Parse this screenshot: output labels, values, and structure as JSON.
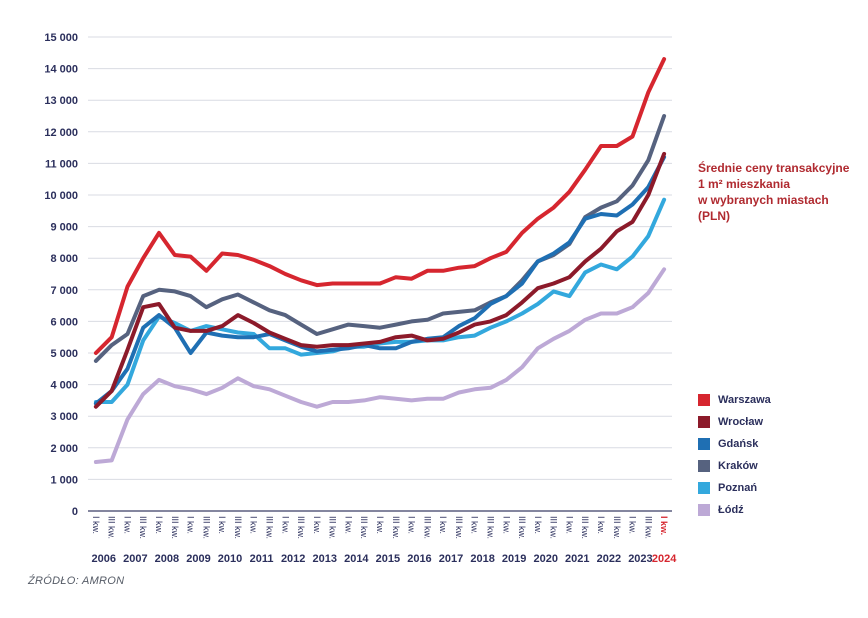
{
  "chart_data": {
    "type": "line",
    "title_lines": [
      "Średnie ceny transakcyjne",
      "1 m² mieszkania",
      "w wybranych miastach",
      "(PLN)"
    ],
    "source": "ŹRÓDŁO: AMRON",
    "y_ticks": [
      "0",
      "1 000",
      "2 000",
      "3 000",
      "4 000",
      "5 000",
      "6 000",
      "7 000",
      "8 000",
      "9 000",
      "10 000",
      "11 000",
      "12 000",
      "13 000",
      "14 000",
      "15 000"
    ],
    "ylim": [
      0,
      15000
    ],
    "grid": true,
    "legend_position": "right",
    "quarter_labels": [
      "I kw.",
      "III kw."
    ],
    "last_quarter_label": "I kw.",
    "years": [
      "2006",
      "2007",
      "2008",
      "2009",
      "2010",
      "2011",
      "2012",
      "2013",
      "2014",
      "2015",
      "2016",
      "2017",
      "2018",
      "2019",
      "2020",
      "2021",
      "2022",
      "2023",
      "2024"
    ],
    "x": [
      "2006 I",
      "2006 III",
      "2007 I",
      "2007 III",
      "2008 I",
      "2008 III",
      "2009 I",
      "2009 III",
      "2010 I",
      "2010 III",
      "2011 I",
      "2011 III",
      "2012 I",
      "2012 III",
      "2013 I",
      "2013 III",
      "2014 I",
      "2014 III",
      "2015 I",
      "2015 III",
      "2016 I",
      "2016 III",
      "2017 I",
      "2017 III",
      "2018 I",
      "2018 III",
      "2019 I",
      "2019 III",
      "2020 I",
      "2020 III",
      "2021 I",
      "2021 III",
      "2022 I",
      "2022 III",
      "2023 I",
      "2023 III",
      "2024 I"
    ],
    "series": [
      {
        "name": "Warszawa",
        "color": "#d6262f",
        "values": [
          5000,
          5500,
          7100,
          8000,
          8800,
          8100,
          8050,
          7600,
          8150,
          8100,
          7950,
          7750,
          7500,
          7300,
          7150,
          7200,
          7200,
          7200,
          7200,
          7400,
          7350,
          7600,
          7600,
          7700,
          7750,
          8000,
          8200,
          8800,
          9250,
          9600,
          10100,
          10800,
          11550,
          11550,
          11850,
          13250,
          14300
        ]
      },
      {
        "name": "Wrocław",
        "color": "#8c1a2a",
        "values": [
          3300,
          3800,
          5100,
          6450,
          6550,
          5800,
          5700,
          5700,
          5850,
          6200,
          5950,
          5650,
          5450,
          5250,
          5200,
          5250,
          5250,
          5300,
          5350,
          5500,
          5550,
          5400,
          5450,
          5650,
          5900,
          6000,
          6200,
          6600,
          7050,
          7200,
          7400,
          7900,
          8300,
          8850,
          9150,
          10000,
          11300
        ]
      },
      {
        "name": "Gdańsk",
        "color": "#1f6fb3",
        "values": [
          3400,
          3800,
          4500,
          5800,
          6200,
          5800,
          5000,
          5650,
          5550,
          5500,
          5500,
          5600,
          5400,
          5200,
          5050,
          5100,
          5150,
          5250,
          5150,
          5150,
          5350,
          5450,
          5500,
          5850,
          6100,
          6550,
          6800,
          7200,
          7900,
          8150,
          8500,
          9250,
          9400,
          9350,
          9700,
          10250,
          11200
        ]
      },
      {
        "name": "Kraków",
        "color": "#56627f",
        "values": [
          4750,
          5250,
          5600,
          6800,
          7000,
          6950,
          6800,
          6450,
          6700,
          6850,
          6600,
          6350,
          6200,
          5900,
          5600,
          5750,
          5900,
          5850,
          5800,
          5900,
          6000,
          6050,
          6250,
          6300,
          6350,
          6600,
          6800,
          7300,
          7900,
          8100,
          8450,
          9300,
          9600,
          9800,
          10300,
          11100,
          12500
        ]
      },
      {
        "name": "Poznań",
        "color": "#33a8dd",
        "values": [
          3450,
          3450,
          4000,
          5400,
          6150,
          5950,
          5700,
          5850,
          5750,
          5650,
          5600,
          5150,
          5150,
          4950,
          5000,
          5050,
          5200,
          5200,
          5300,
          5350,
          5350,
          5400,
          5400,
          5500,
          5550,
          5800,
          6000,
          6250,
          6550,
          6950,
          6800,
          7550,
          7800,
          7650,
          8050,
          8700,
          9850
        ]
      },
      {
        "name": "Łódź",
        "color": "#bda9d6",
        "values": [
          1550,
          1600,
          2900,
          3700,
          4150,
          3950,
          3850,
          3700,
          3900,
          4200,
          3950,
          3850,
          3650,
          3450,
          3300,
          3450,
          3450,
          3500,
          3600,
          3550,
          3500,
          3550,
          3550,
          3750,
          3850,
          3900,
          4150,
          4550,
          5150,
          5450,
          5700,
          6050,
          6250,
          6250,
          6450,
          6900,
          7650
        ]
      }
    ]
  }
}
